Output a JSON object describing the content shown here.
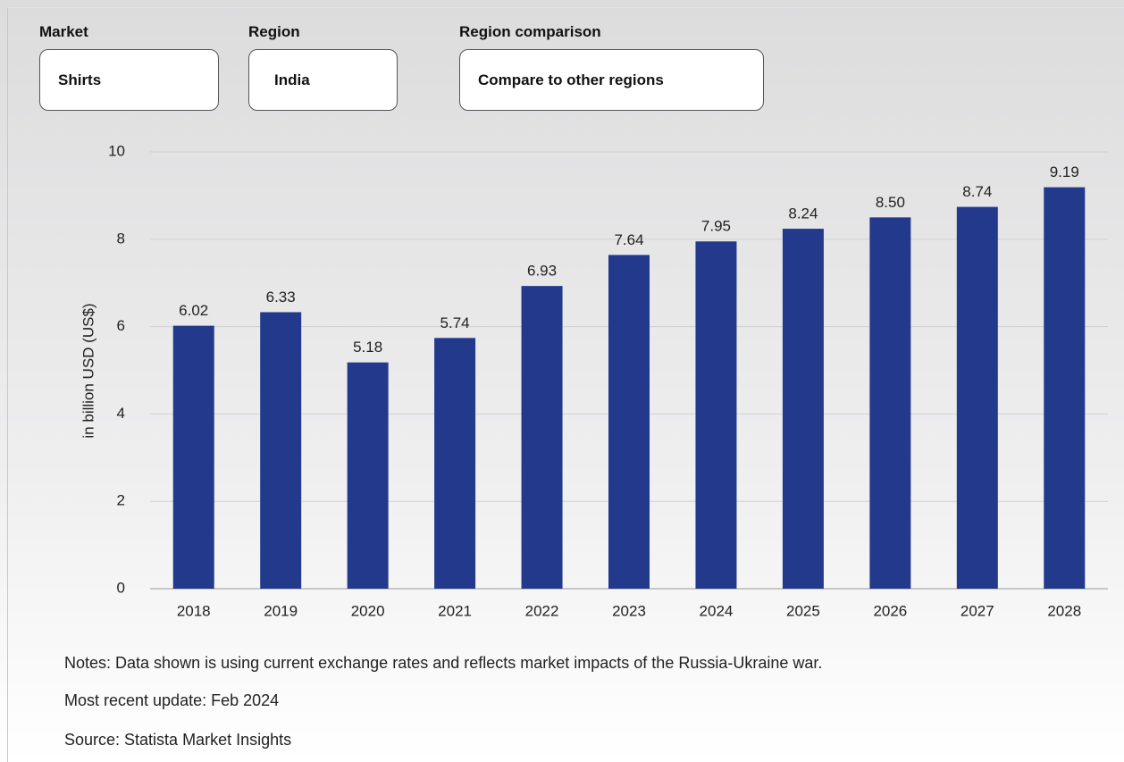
{
  "filters": [
    {
      "label": "Market",
      "value": "Shirts"
    },
    {
      "label": "Region",
      "value": "India"
    },
    {
      "label": "Region comparison",
      "value": "Compare to other regions"
    }
  ],
  "chart_data": {
    "type": "bar",
    "ylabel": "in billion USD (US$)",
    "categories": [
      "2018",
      "2019",
      "2020",
      "2021",
      "2022",
      "2023",
      "2024",
      "2025",
      "2026",
      "2027",
      "2028"
    ],
    "values": [
      6.02,
      6.33,
      5.18,
      5.74,
      6.93,
      7.64,
      7.95,
      8.24,
      8.5,
      8.74,
      9.19
    ],
    "value_labels": [
      "6.02",
      "6.33",
      "5.18",
      "5.74",
      "6.93",
      "7.64",
      "7.95",
      "8.24",
      "8.50",
      "8.74",
      "9.19"
    ],
    "color": "#233a8c",
    "ylim": [
      0,
      10
    ],
    "yticks": [
      0,
      2,
      4,
      6,
      8,
      10
    ],
    "grid": true
  },
  "notes": [
    "Notes: Data shown is using current exchange rates and reflects market impacts of the Russia-Ukraine war.",
    "Most recent update: Feb 2024",
    "Source: Statista Market Insights"
  ]
}
